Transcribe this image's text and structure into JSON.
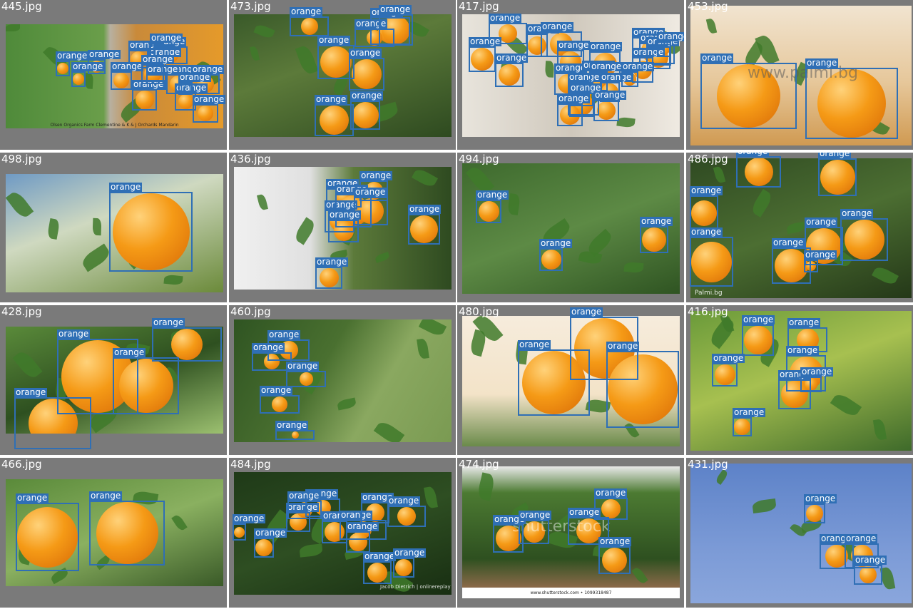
{
  "grid_title": "",
  "detection_label": "orange",
  "colors": {
    "background": "#ffffff",
    "tile_background": "#7a7a7a",
    "box_stroke": "#2f6fb5",
    "label_text": "#ffffff"
  },
  "cells": [
    {
      "name": "445.jpg",
      "caption": "Olsen Organics Farm Clementine & K & J Orchards Mandarin",
      "detection_count": 16
    },
    {
      "name": "473.jpg",
      "detection_count": 8
    },
    {
      "name": "417.jpg",
      "detection_count": 22
    },
    {
      "name": "453.jpg",
      "watermark": "www.palmi.bg",
      "detection_count": 2
    },
    {
      "name": "498.jpg",
      "detection_count": 1
    },
    {
      "name": "436.jpg",
      "detection_count": 8
    },
    {
      "name": "494.jpg",
      "detection_count": 3
    },
    {
      "name": "486.jpg",
      "watermark": "Palmi.bg",
      "detection_count": 8
    },
    {
      "name": "428.jpg",
      "detection_count": 4
    },
    {
      "name": "460.jpg",
      "detection_count": 5
    },
    {
      "name": "480.jpg",
      "detection_count": 3
    },
    {
      "name": "416.jpg",
      "detection_count": 7
    },
    {
      "name": "466.jpg",
      "detection_count": 2
    },
    {
      "name": "484.jpg",
      "watermark": "Jacob Dietrich | onlinereplay",
      "detection_count": 12
    },
    {
      "name": "474.jpg",
      "caption": "www.shutterstock.com • 1099318487",
      "watermark": "shutterstock",
      "detection_count": 5
    },
    {
      "name": "431.jpg",
      "detection_count": 4
    }
  ]
}
